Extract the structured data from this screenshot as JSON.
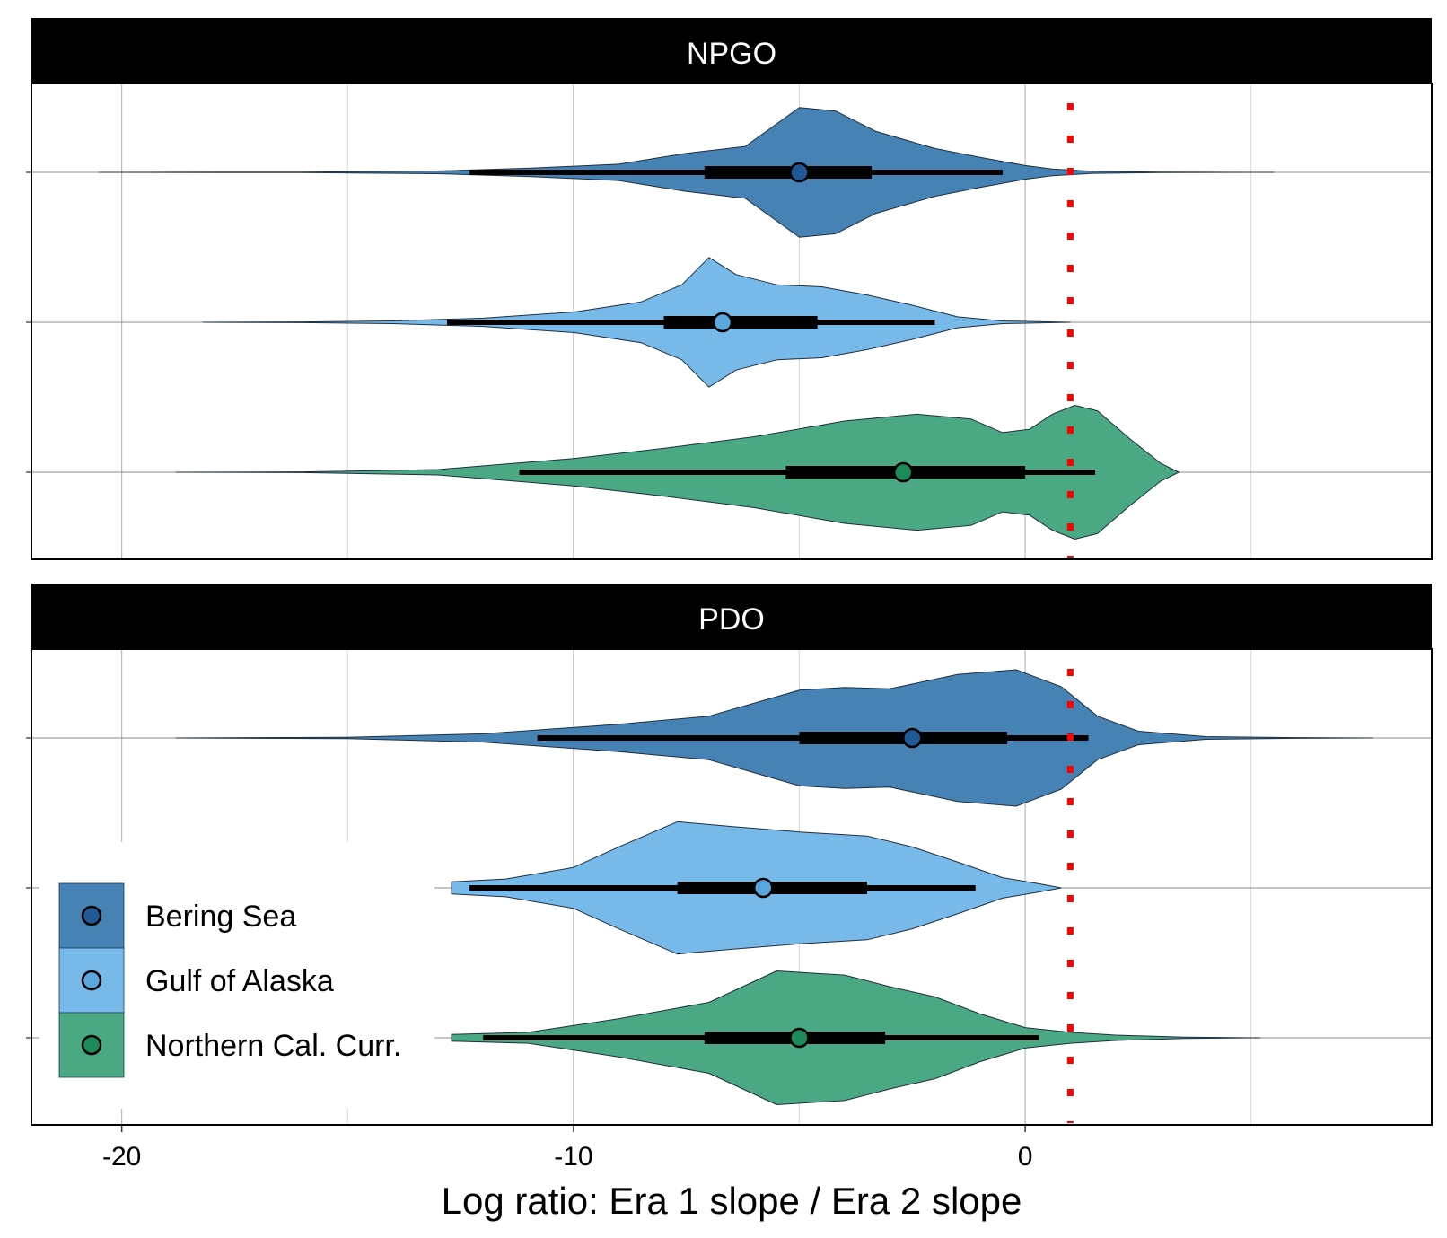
{
  "chart_data": {
    "type": "violin",
    "orientation": "horizontal",
    "xlabel": "Log ratio: Era 1 slope / Era 2 slope",
    "xlim": [
      -22,
      9
    ],
    "x_ticks": [
      -20,
      -10,
      0
    ],
    "x_tick_labels": [
      "-20",
      "-10",
      "0"
    ],
    "minor_gridlines": [
      -15,
      -5,
      5
    ],
    "reference_line": {
      "x": 1,
      "color": "#ff0000",
      "style": "dotted"
    },
    "grid": true,
    "legend_position": "bottom-left",
    "groups": [
      {
        "name": "Bering Sea",
        "fill": "#4682b4",
        "point": "#1f5a96"
      },
      {
        "name": "Gulf of Alaska",
        "fill": "#77b9e8",
        "point": "#5aa7df"
      },
      {
        "name": "Northern Cal. Curr.",
        "fill": "#4aa883",
        "point": "#1d8a5a"
      }
    ],
    "panels": [
      {
        "title": "NPGO",
        "series": [
          {
            "group": "Bering Sea",
            "median": -5,
            "inner_interval": [
              -7.1,
              -3.4
            ],
            "outer_interval": [
              -12.3,
              -0.5
            ],
            "range": [
              -20.5,
              5.5
            ],
            "density": [
              [
                -20.5,
                0
              ],
              [
                -16,
                0.004
              ],
              [
                -13,
                0.02
              ],
              [
                -11,
                0.06
              ],
              [
                -9,
                0.12
              ],
              [
                -7.5,
                0.28
              ],
              [
                -6.2,
                0.38
              ],
              [
                -5,
                0.95
              ],
              [
                -4.2,
                0.9
              ],
              [
                -3.3,
                0.6
              ],
              [
                -2,
                0.35
              ],
              [
                -1,
                0.22
              ],
              [
                0,
                0.1
              ],
              [
                0.6,
                0.05
              ],
              [
                1.5,
                0.015
              ],
              [
                3,
                0.003
              ],
              [
                5.5,
                0
              ]
            ]
          },
          {
            "group": "Gulf of Alaska",
            "median": -6.7,
            "inner_interval": [
              -8.0,
              -4.6
            ],
            "outer_interval": [
              -12.8,
              -2.0
            ],
            "range": [
              -18.2,
              1.0
            ],
            "density": [
              [
                -18.2,
                0
              ],
              [
                -16,
                0.005
              ],
              [
                -14,
                0.02
              ],
              [
                -12,
                0.06
              ],
              [
                -10,
                0.15
              ],
              [
                -8.5,
                0.3
              ],
              [
                -7.6,
                0.55
              ],
              [
                -7.0,
                0.95
              ],
              [
                -6.4,
                0.7
              ],
              [
                -5.5,
                0.55
              ],
              [
                -4.5,
                0.52
              ],
              [
                -3.5,
                0.4
              ],
              [
                -2.5,
                0.25
              ],
              [
                -1.5,
                0.08
              ],
              [
                -0.5,
                0.02
              ],
              [
                1.0,
                0
              ]
            ]
          },
          {
            "group": "Northern Cal. Curr.",
            "median": -2.7,
            "inner_interval": [
              -5.3,
              0.0
            ],
            "outer_interval": [
              -11.2,
              1.55
            ],
            "range": [
              -18.8,
              3.4
            ],
            "density": [
              [
                -18.8,
                0
              ],
              [
                -16,
                0.005
              ],
              [
                -13,
                0.04
              ],
              [
                -10,
                0.2
              ],
              [
                -8,
                0.35
              ],
              [
                -6,
                0.52
              ],
              [
                -4,
                0.75
              ],
              [
                -2.4,
                0.85
              ],
              [
                -1.2,
                0.78
              ],
              [
                -0.5,
                0.58
              ],
              [
                0.1,
                0.63
              ],
              [
                0.6,
                0.85
              ],
              [
                1.1,
                0.98
              ],
              [
                1.6,
                0.9
              ],
              [
                2.3,
                0.5
              ],
              [
                3.0,
                0.13
              ],
              [
                3.4,
                0
              ]
            ]
          }
        ]
      },
      {
        "title": "PDO",
        "series": [
          {
            "group": "Bering Sea",
            "median": -2.5,
            "inner_interval": [
              -5.0,
              -0.4
            ],
            "outer_interval": [
              -10.8,
              1.4
            ],
            "range": [
              -18.8,
              7.7
            ],
            "density": [
              [
                -18.8,
                0
              ],
              [
                -15,
                0.01
              ],
              [
                -12,
                0.06
              ],
              [
                -9,
                0.2
              ],
              [
                -7,
                0.32
              ],
              [
                -5,
                0.7
              ],
              [
                -4,
                0.74
              ],
              [
                -3,
                0.72
              ],
              [
                -1.5,
                0.93
              ],
              [
                -0.2,
                1.0
              ],
              [
                0.8,
                0.75
              ],
              [
                1.6,
                0.32
              ],
              [
                2.5,
                0.1
              ],
              [
                4,
                0.02
              ],
              [
                6,
                0.005
              ],
              [
                7.7,
                0
              ]
            ]
          },
          {
            "group": "Gulf of Alaska",
            "median": -5.8,
            "inner_interval": [
              -7.7,
              -3.5
            ],
            "outer_interval": [
              -12.3,
              -1.1
            ],
            "range": [
              -12.7,
              0.8
            ],
            "density": [
              [
                -12.7,
                0.09
              ],
              [
                -11.5,
                0.13
              ],
              [
                -10,
                0.3
              ],
              [
                -9,
                0.6
              ],
              [
                -7.7,
                0.97
              ],
              [
                -6.5,
                0.9
              ],
              [
                -5,
                0.82
              ],
              [
                -3.5,
                0.76
              ],
              [
                -2.5,
                0.6
              ],
              [
                -1.5,
                0.38
              ],
              [
                -0.5,
                0.15
              ],
              [
                0.3,
                0.06
              ],
              [
                0.8,
                0
              ]
            ]
          },
          {
            "group": "Northern Cal. Curr.",
            "median": -5.0,
            "inner_interval": [
              -7.1,
              -3.1
            ],
            "outer_interval": [
              -12.0,
              0.3
            ],
            "range": [
              -12.7,
              5.2
            ],
            "density": [
              [
                -12.7,
                0.05
              ],
              [
                -11,
                0.08
              ],
              [
                -9,
                0.28
              ],
              [
                -7,
                0.52
              ],
              [
                -5.5,
                0.98
              ],
              [
                -4,
                0.92
              ],
              [
                -3,
                0.75
              ],
              [
                -2,
                0.6
              ],
              [
                -1,
                0.35
              ],
              [
                0,
                0.15
              ],
              [
                1,
                0.08
              ],
              [
                2,
                0.04
              ],
              [
                3.5,
                0.01
              ],
              [
                5.2,
                0
              ]
            ]
          }
        ]
      }
    ]
  }
}
